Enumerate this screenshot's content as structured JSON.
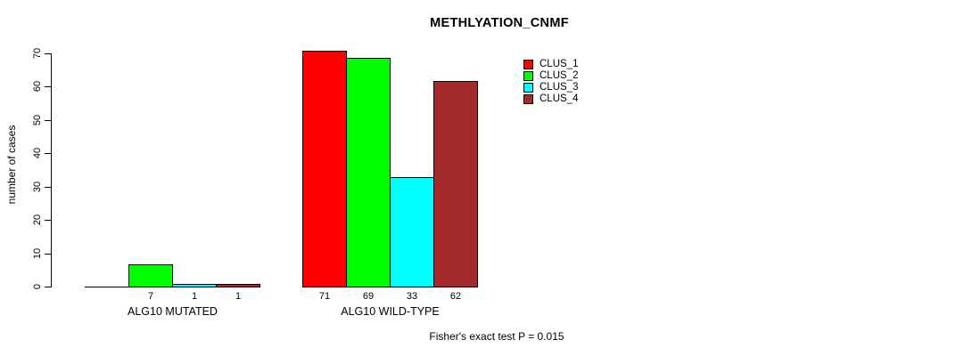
{
  "title": "METHLYATION_CNMF",
  "chart_data": {
    "type": "bar",
    "title": "METHLYATION_CNMF",
    "xlabel": "",
    "ylabel": "number of cases",
    "categories": [
      "ALG10 MUTATED",
      "ALG10 WILD-TYPE"
    ],
    "series": [
      {
        "name": "CLUS_1",
        "color": "#ff0000",
        "values": [
          0,
          71
        ]
      },
      {
        "name": "CLUS_2",
        "color": "#00ff00",
        "values": [
          7,
          69
        ]
      },
      {
        "name": "CLUS_3",
        "color": "#00ffff",
        "values": [
          1,
          33
        ]
      },
      {
        "name": "CLUS_4",
        "color": "#a52a2a",
        "values": [
          1,
          62
        ]
      }
    ],
    "bar_value_labels": [
      [
        "",
        "7",
        "1",
        "1"
      ],
      [
        "71",
        "69",
        "33",
        "62"
      ]
    ],
    "yticks": [
      0,
      10,
      20,
      30,
      40,
      50,
      60,
      70
    ],
    "ylim": [
      0,
      70
    ],
    "grid": false,
    "legend_position": "top-right",
    "annotation": "Fisher's exact test P = 0.015"
  }
}
